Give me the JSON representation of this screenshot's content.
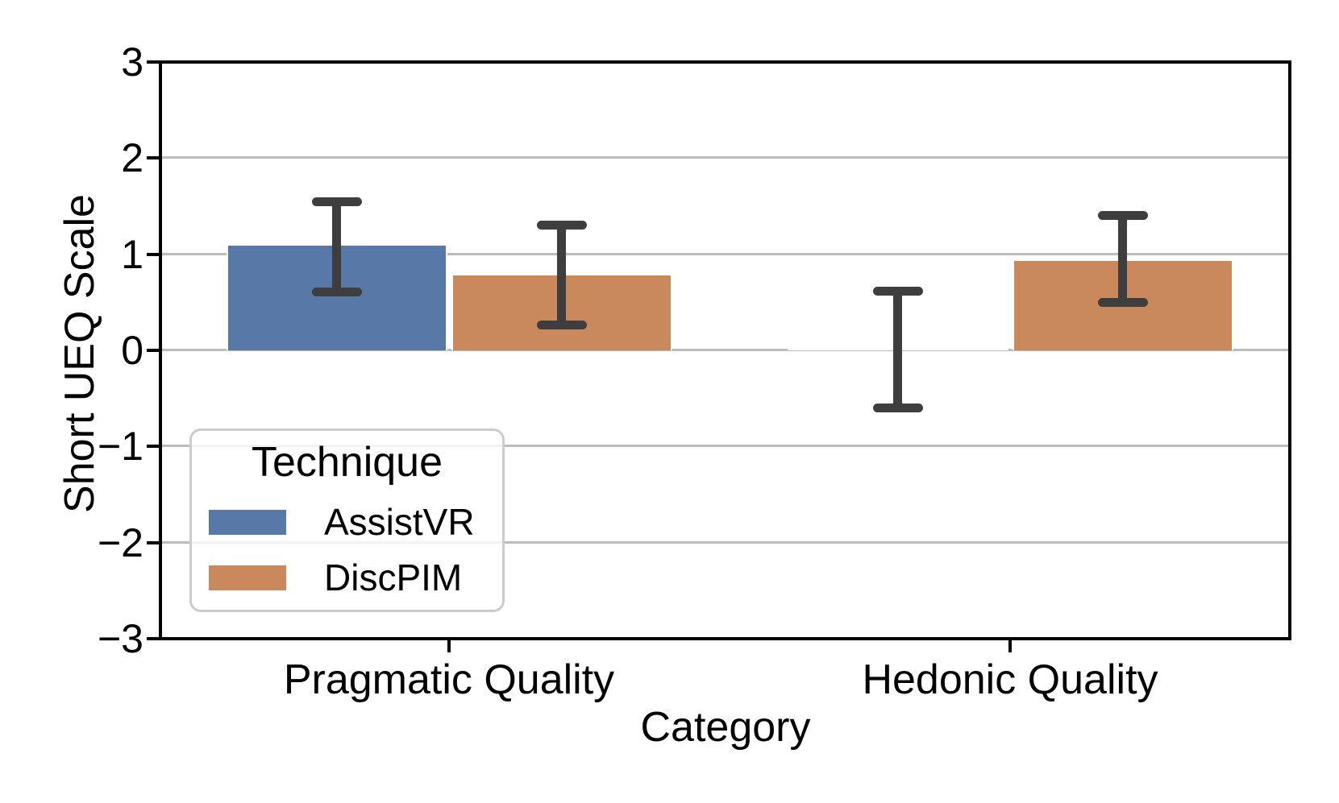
{
  "chart_data": {
    "type": "bar",
    "title": "",
    "categories": [
      "Pragmatic Quality",
      "Hedonic Quality"
    ],
    "series": [
      {
        "name": "AssistVR",
        "color": "#5878a8",
        "values": [
          1.09,
          0.01
        ],
        "ci_low": [
          0.61,
          -0.6
        ],
        "ci_high": [
          1.55,
          0.62
        ]
      },
      {
        "name": "DiscPIM",
        "color": "#c9895c",
        "values": [
          0.78,
          0.93
        ],
        "ci_low": [
          0.26,
          0.5
        ],
        "ci_high": [
          1.3,
          1.4
        ]
      }
    ],
    "xlabel": "Category",
    "ylabel": "Short UEQ Scale",
    "ylim": [
      -3,
      3
    ],
    "yticks": [
      3,
      2,
      1,
      0,
      -1,
      -2,
      -3
    ],
    "ytick_labels": [
      "3",
      "2",
      "1",
      "0",
      "−1",
      "−2",
      "−3"
    ],
    "grid": true,
    "gridline_color": "#bcbcbc",
    "errorbar_color": "#3e3e3e",
    "spine_color": "#000000",
    "legend": {
      "title": "Technique",
      "position": "lower left",
      "entries": [
        "AssistVR",
        "DiscPIM"
      ]
    }
  }
}
